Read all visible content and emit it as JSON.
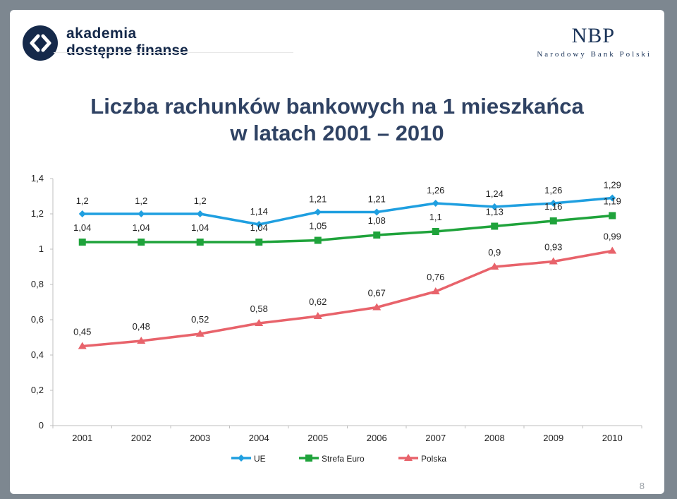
{
  "header": {
    "logo_line1": "akademia",
    "logo_line2": "dostępne finanse",
    "bank_abbr": "NBP",
    "bank_name": "Narodowy Bank Polski"
  },
  "slide": {
    "title_line1": "Liczba rachunków bankowych na 1 mieszkańca",
    "title_line2": "w latach 2001 – 2010",
    "page_number": "8"
  },
  "colors": {
    "UE": "#1f9fe0",
    "Strefa Euro": "#1fa33b",
    "Polska": "#e8636b",
    "title": "#2f4263",
    "logo": "#15294a"
  },
  "chart_data": {
    "type": "line",
    "categories": [
      "2001",
      "2002",
      "2003",
      "2004",
      "2005",
      "2006",
      "2007",
      "2008",
      "2009",
      "2010"
    ],
    "series": [
      {
        "name": "UE",
        "marker": "diamond",
        "values": [
          1.2,
          1.2,
          1.2,
          1.14,
          1.21,
          1.21,
          1.26,
          1.24,
          1.26,
          1.29
        ],
        "labels": [
          "1,2",
          "1,2",
          "1,2",
          "1,14",
          "1,21",
          "1,21",
          "1,26",
          "1,24",
          "1,26",
          "1,29"
        ]
      },
      {
        "name": "Strefa Euro",
        "marker": "square",
        "values": [
          1.04,
          1.04,
          1.04,
          1.04,
          1.05,
          1.08,
          1.1,
          1.13,
          1.16,
          1.19
        ],
        "labels": [
          "1,04",
          "1,04",
          "1,04",
          "1,04",
          "1,05",
          "1,08",
          "1,1",
          "1,13",
          "1,16",
          "1,19"
        ]
      },
      {
        "name": "Polska",
        "marker": "triangle",
        "values": [
          0.45,
          0.48,
          0.52,
          0.58,
          0.62,
          0.67,
          0.76,
          0.9,
          0.93,
          0.99
        ],
        "labels": [
          "0,45",
          "0,48",
          "0,52",
          "0,58",
          "0,62",
          "0,67",
          "0,76",
          "0,9",
          "0,93",
          "0,99"
        ]
      }
    ],
    "ylim": [
      0,
      1.4
    ],
    "yticks": [
      "0",
      "0,2",
      "0,4",
      "0,6",
      "0,8",
      "1",
      "1,2",
      "1,4"
    ],
    "grid": false,
    "legend_position": "bottom"
  }
}
